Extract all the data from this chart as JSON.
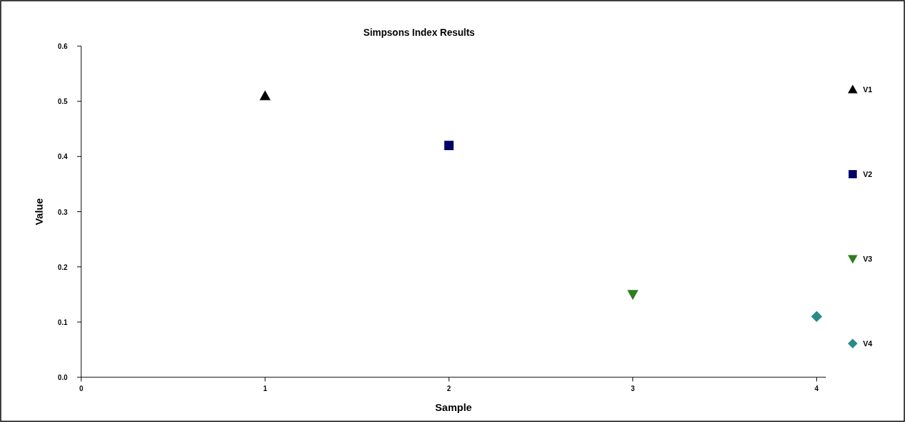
{
  "chart_data": {
    "type": "scatter",
    "title": "Simpsons Index Results",
    "xlabel": "Sample",
    "ylabel": "Value",
    "xlim": [
      0,
      4.05
    ],
    "xticks": [
      0,
      1,
      2,
      3,
      4
    ],
    "ylim": [
      0,
      0.6
    ],
    "yticks": [
      {
        "value": 0,
        "label": "0.0"
      },
      0.1,
      0.2,
      0.3,
      0.4,
      0.5,
      0.6
    ],
    "legend": "right",
    "grid": false,
    "series": [
      {
        "name": "V1",
        "color": "#000000",
        "marker": "triangle",
        "x": [
          1
        ],
        "values": [
          0.51
        ]
      },
      {
        "name": "V2",
        "color": "#000066",
        "marker": "square",
        "x": [
          2
        ],
        "values": [
          0.42
        ]
      },
      {
        "name": "V3",
        "color": "#2e7d1e",
        "marker": "triangle-down",
        "x": [
          3
        ],
        "values": [
          0.15
        ]
      },
      {
        "name": "V4",
        "color": "#2a8a8a",
        "marker": "diamond",
        "x": [
          4
        ],
        "values": [
          0.11
        ]
      }
    ]
  }
}
